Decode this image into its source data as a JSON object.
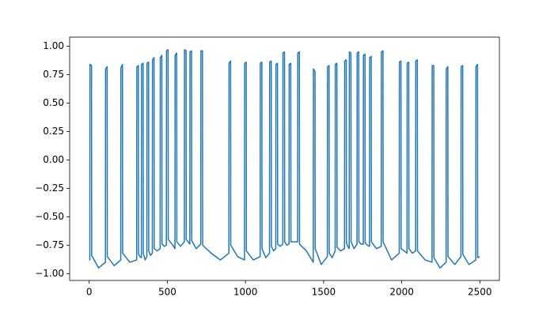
{
  "chart_data": {
    "type": "line",
    "x": [
      0,
      4,
      5,
      15,
      16,
      60,
      104,
      105,
      115,
      116,
      160,
      202,
      203,
      213,
      214,
      260,
      304,
      305,
      315,
      316,
      325,
      334,
      335,
      345,
      346,
      358,
      369,
      370,
      380,
      381,
      393,
      404,
      405,
      415,
      416,
      435,
      454,
      455,
      465,
      466,
      480,
      494,
      495,
      505,
      506,
      530,
      549,
      550,
      560,
      561,
      585,
      609,
      610,
      620,
      621,
      633,
      644,
      645,
      655,
      656,
      685,
      714,
      715,
      725,
      726,
      780,
      840,
      894,
      895,
      905,
      906,
      950,
      994,
      995,
      1005,
      1006,
      1050,
      1094,
      1095,
      1105,
      1106,
      1130,
      1154,
      1155,
      1165,
      1166,
      1180,
      1194,
      1195,
      1205,
      1206,
      1222,
      1239,
      1240,
      1250,
      1251,
      1265,
      1279,
      1280,
      1290,
      1291,
      1312,
      1334,
      1335,
      1345,
      1346,
      1390,
      1434,
      1435,
      1445,
      1446,
      1485,
      1524,
      1525,
      1535,
      1536,
      1555,
      1574,
      1575,
      1585,
      1586,
      1610,
      1634,
      1635,
      1645,
      1646,
      1655,
      1664,
      1665,
      1675,
      1676,
      1695,
      1714,
      1715,
      1725,
      1726,
      1740,
      1754,
      1755,
      1765,
      1766,
      1780,
      1794,
      1795,
      1805,
      1806,
      1838,
      1869,
      1870,
      1880,
      1881,
      1935,
      1984,
      1985,
      1995,
      1996,
      2015,
      2034,
      2035,
      2045,
      2046,
      2068,
      2089,
      2090,
      2100,
      2101,
      2150,
      2194,
      2195,
      2205,
      2206,
      2245,
      2284,
      2285,
      2295,
      2296,
      2340,
      2379,
      2380,
      2390,
      2391,
      2430,
      2474,
      2475,
      2485,
      2486,
      2499
    ],
    "series": [
      {
        "color": "#1f77b4",
        "values": [
          -0.88,
          -0.88,
          0.84,
          0.83,
          -0.84,
          -0.95,
          -0.9,
          0.8,
          0.82,
          -0.85,
          -0.93,
          -0.88,
          0.81,
          0.84,
          -0.82,
          -0.9,
          -0.88,
          0.82,
          0.83,
          -0.83,
          -0.85,
          -0.86,
          0.84,
          0.85,
          -0.82,
          -0.88,
          -0.85,
          0.85,
          0.86,
          -0.8,
          -0.84,
          -0.82,
          0.88,
          0.9,
          -0.78,
          -0.8,
          -0.78,
          0.9,
          0.92,
          -0.74,
          -0.76,
          -0.75,
          0.96,
          0.97,
          -0.7,
          -0.74,
          -0.78,
          0.92,
          0.94,
          -0.72,
          -0.76,
          -0.72,
          0.97,
          0.96,
          -0.7,
          -0.72,
          -0.74,
          0.95,
          0.96,
          -0.71,
          -0.78,
          -0.74,
          0.96,
          0.96,
          -0.75,
          -0.82,
          -0.88,
          -0.82,
          0.85,
          0.87,
          -0.75,
          -0.85,
          -0.88,
          0.85,
          0.86,
          -0.8,
          -0.88,
          -0.85,
          0.85,
          0.86,
          -0.78,
          -0.86,
          -0.82,
          0.86,
          0.87,
          -0.76,
          -0.8,
          -0.78,
          0.84,
          0.85,
          -0.74,
          -0.76,
          -0.74,
          0.94,
          0.95,
          -0.72,
          -0.75,
          -0.74,
          0.84,
          0.85,
          -0.72,
          -0.72,
          -0.72,
          0.94,
          0.95,
          -0.74,
          -0.8,
          -0.9,
          0.8,
          0.78,
          -0.78,
          -0.92,
          -0.85,
          0.82,
          0.83,
          -0.82,
          -0.86,
          -0.8,
          0.84,
          0.85,
          -0.77,
          -0.8,
          -0.78,
          0.87,
          0.88,
          -0.73,
          -0.76,
          -0.78,
          0.95,
          0.94,
          -0.72,
          -0.78,
          -0.74,
          0.94,
          0.95,
          -0.72,
          -0.74,
          -0.74,
          0.92,
          0.93,
          -0.73,
          -0.75,
          -0.76,
          0.9,
          0.91,
          -0.72,
          -0.78,
          -0.76,
          0.95,
          0.96,
          -0.72,
          -0.88,
          -0.82,
          0.86,
          0.87,
          -0.78,
          -0.8,
          -0.82,
          0.85,
          0.86,
          -0.78,
          -0.82,
          -0.8,
          0.87,
          0.88,
          -0.8,
          -0.88,
          -0.9,
          0.83,
          0.83,
          -0.86,
          -0.95,
          -0.9,
          0.8,
          0.82,
          -0.85,
          -0.92,
          -0.85,
          0.82,
          0.83,
          -0.83,
          -0.92,
          -0.88,
          0.82,
          0.84,
          -0.86,
          -0.85
        ]
      }
    ],
    "xlim": [
      -125,
      2625
    ],
    "xticks": [
      0,
      500,
      1000,
      1500,
      2000,
      2500
    ],
    "ylim": [
      -1.06,
      1.08
    ],
    "yticks": [
      {
        "value": -1,
        "label": "−1.00"
      },
      {
        "value": -0.75,
        "label": "−0.75"
      },
      {
        "value": -0.5,
        "label": "−0.50"
      },
      {
        "value": -0.25,
        "label": "−0.25"
      },
      {
        "value": 0,
        "label": "0.00"
      },
      {
        "value": 0.25,
        "label": "0.25"
      },
      {
        "value": 0.5,
        "label": "0.50"
      },
      {
        "value": 0.75,
        "label": "0.75"
      },
      {
        "value": 1,
        "label": "1.00"
      }
    ]
  }
}
